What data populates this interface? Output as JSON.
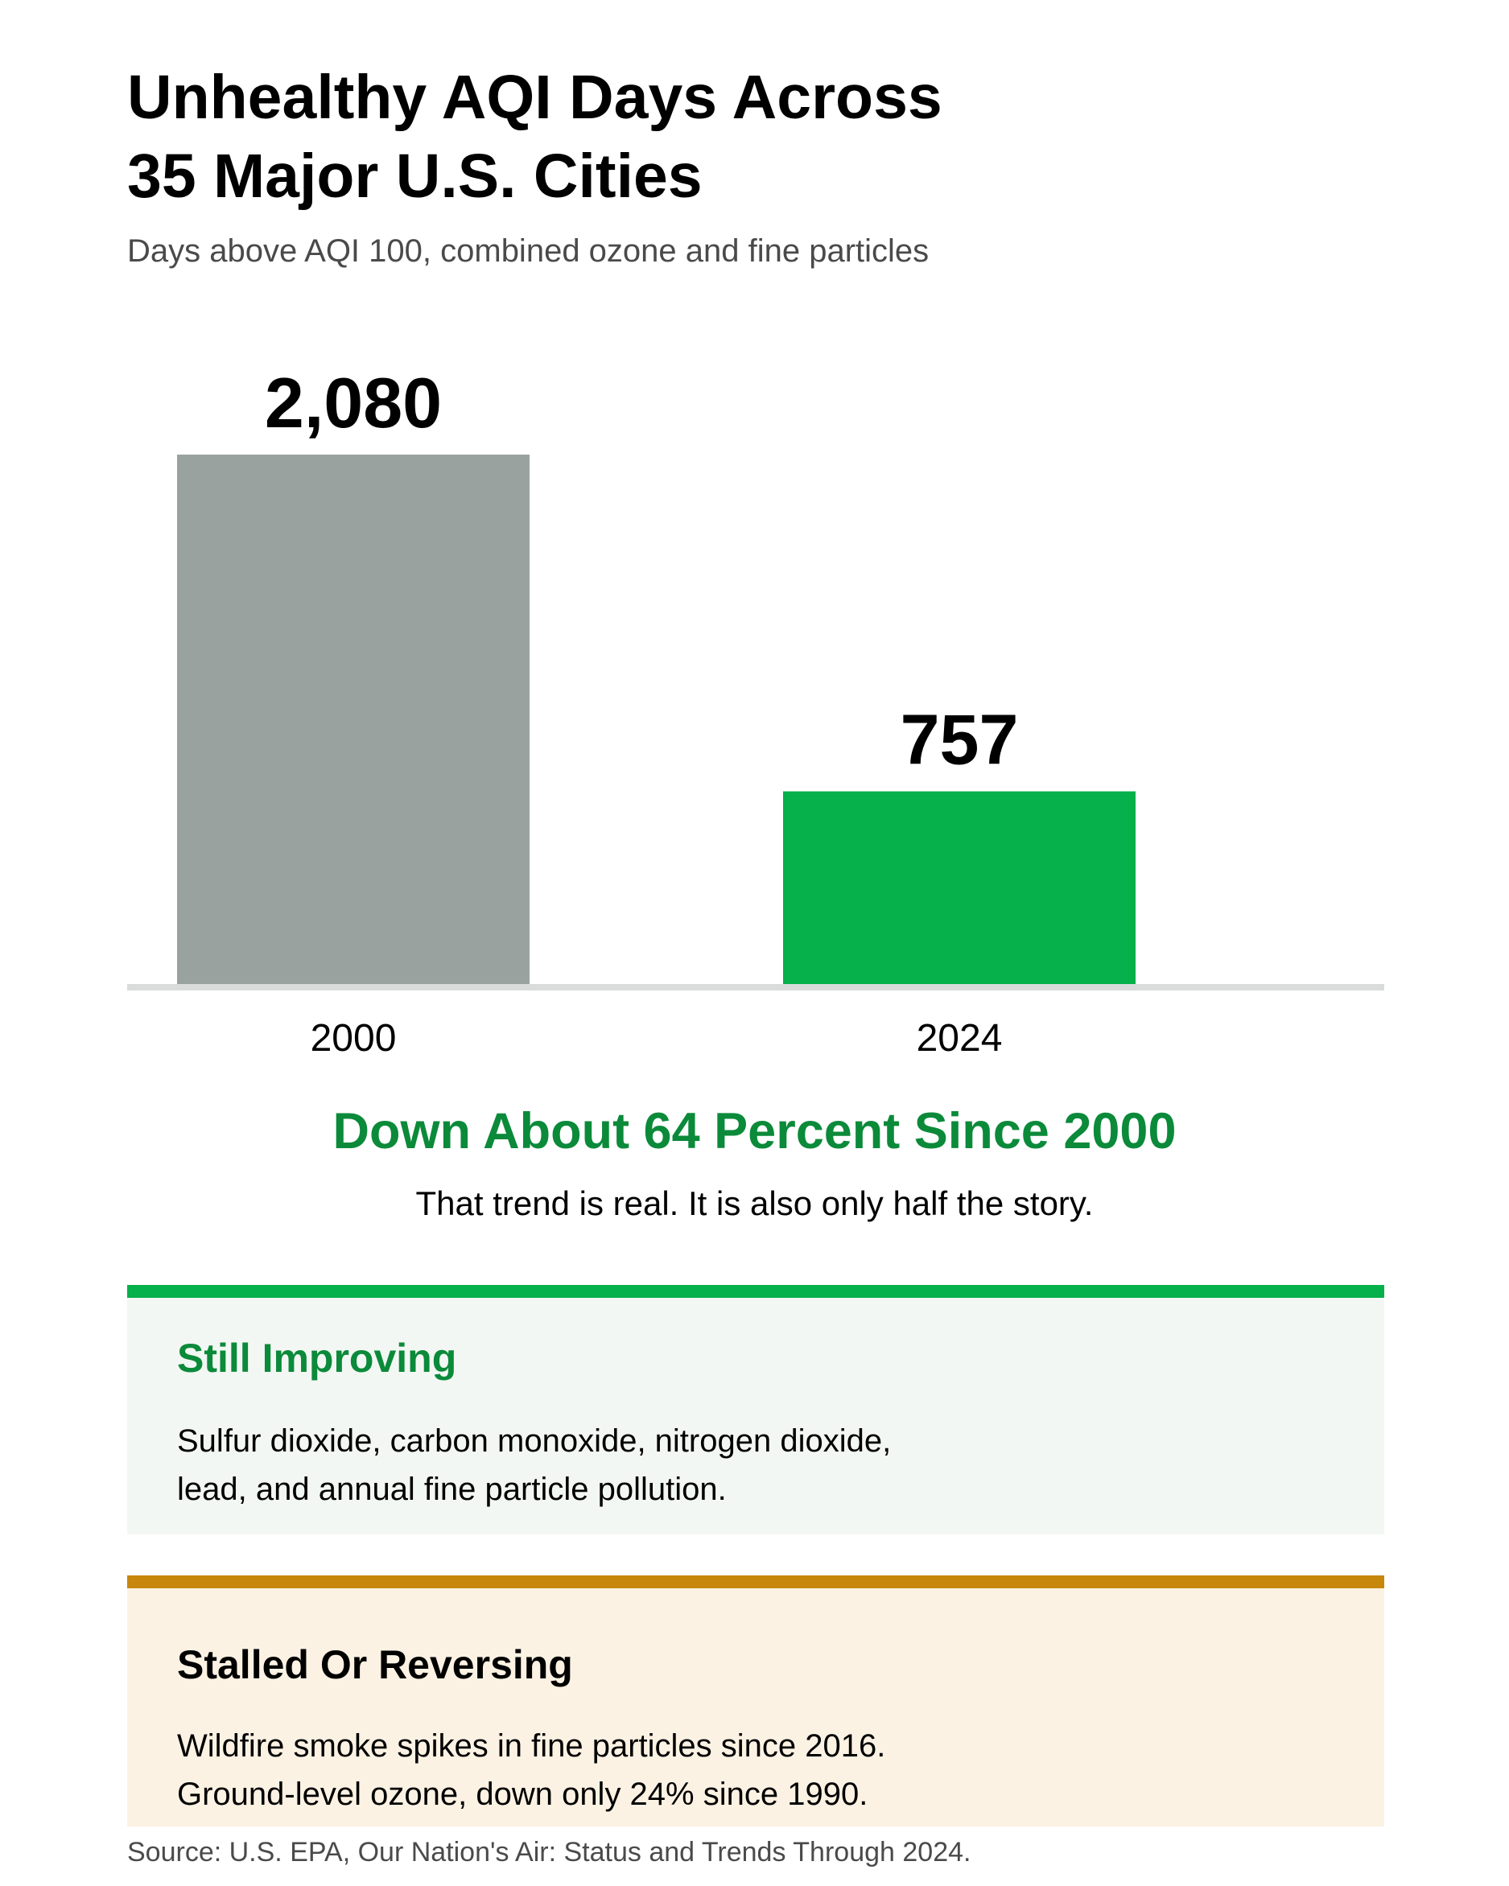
{
  "header": {
    "title_line1": "Unhealthy AQI Days Across",
    "title_line2": "35 Major U.S. Cities",
    "subtitle": "Days above AQI 100, combined ozone and fine particles"
  },
  "chart_data": {
    "type": "bar",
    "categories": [
      "2000",
      "2024"
    ],
    "values": [
      2080,
      757
    ],
    "value_labels": [
      "2,080",
      "757"
    ],
    "bar_colors": [
      "#9aa29f",
      "#06b04a"
    ],
    "title": "Unhealthy AQI Days Across 35 Major U.S. Cities",
    "subtitle": "Days above AQI 100, combined ozone and fine particles",
    "xlabel": "",
    "ylabel": "",
    "ylim": [
      0,
      2080
    ],
    "grid": false,
    "legend": "none"
  },
  "summary": {
    "headline": "Down About 64 Percent Since 2000",
    "subhead": "That trend is real. It is also only half the story."
  },
  "panels": {
    "improving": {
      "title": "Still Improving",
      "line1": "Sulfur dioxide, carbon monoxide, nitrogen dioxide,",
      "line2": "lead, and annual fine particle pollution.",
      "accent": "#06b04a"
    },
    "stalled": {
      "title": "Stalled Or Reversing",
      "line1": "Wildfire smoke spikes in fine particles since 2016.",
      "line2": "Ground-level ozone, down only 24% since 1990.",
      "accent": "#c7870c"
    }
  },
  "footer": {
    "source": "Source: U.S. EPA, Our Nation's Air: Status and Trends Through 2024."
  }
}
